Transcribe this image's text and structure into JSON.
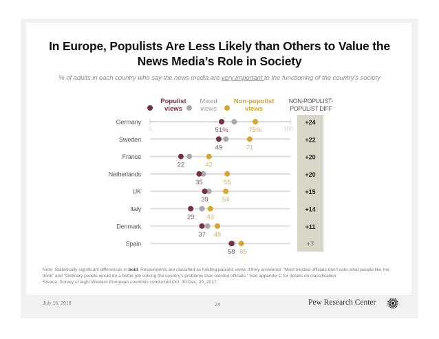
{
  "slide": {
    "title_line1": "In Europe, Populists Are Less Likely than Others to Value the",
    "title_line2": "News Media’s Role in Society",
    "subtitle_pre": "% of adults in each country who say the news media are ",
    "subtitle_underlined": "very important ",
    "subtitle_post": "to the functioning of the country’s society",
    "diff_header_line1": "NON-POPULIST-",
    "diff_header_line2": "POPULIST DIFF",
    "note_prefix": "Note: Statistically significant differences in ",
    "note_bold": "bold",
    "note_rest": ". Respondents are classified as holding populist views if they answered: “Most elected officials don’t care what people like me think” and “Ordinary people would do a better job solving the country’s problems than elected officials.” See appendix C for details on classification.",
    "source": "Source: Survey of eight Western European countries conducted Oct. 30-Dec. 20, 2017.",
    "date": "July 16, 2018",
    "page_number": "24",
    "brand": "Pew Research Center"
  },
  "colors": {
    "populist": "#7a2e45",
    "mixed": "#a9a9a9",
    "non_populist": "#d6a62c",
    "axis": "#dcdcdc",
    "diff_bg": "#d9d6c7"
  },
  "chart_data": {
    "type": "dot-plot",
    "title": "In Europe, Populists Are Less Likely than Others to Value the News Media’s Role in Society",
    "subtitle": "% of adults in each country who say the news media are very important to the functioning of the country’s society",
    "xlim": [
      0,
      100
    ],
    "axis_tick_labels": [
      "0",
      "100"
    ],
    "grid": false,
    "legend_position": "top",
    "categories": [
      "Germany",
      "Sweden",
      "France",
      "Netherlands",
      "UK",
      "Italy",
      "Denmark",
      "Spain"
    ],
    "series": [
      {
        "name": "Populist views",
        "key": "populist",
        "values": [
          51,
          49,
          22,
          35,
          39,
          29,
          37,
          58
        ]
      },
      {
        "name": "Mixed views",
        "key": "mixed",
        "values": [
          60,
          54,
          28,
          38,
          42,
          37,
          41,
          59
        ]
      },
      {
        "name": "Non-populist views",
        "key": "non_populist",
        "values": [
          75,
          71,
          42,
          55,
          54,
          43,
          48,
          65
        ]
      }
    ],
    "value_labels": {
      "populist": [
        "51%",
        "49",
        "22",
        "35",
        "39",
        "29",
        "37",
        "58"
      ],
      "non_populist": [
        "75%",
        "71",
        "42",
        "55",
        "54",
        "43",
        "48",
        "65"
      ]
    },
    "diff": {
      "header": "NON-POPULIST-POPULIST DIFF",
      "labels": [
        "+24",
        "+22",
        "+20",
        "+20",
        "+15",
        "+14",
        "+11",
        "+7"
      ],
      "significant": [
        true,
        true,
        true,
        true,
        true,
        true,
        true,
        false
      ]
    }
  },
  "legend": [
    {
      "line1": "Populist",
      "line2": "views",
      "key": "populist"
    },
    {
      "line1": "Mixed",
      "line2": "views",
      "key": "mixed"
    },
    {
      "line1": "Non-populist",
      "line2": "views",
      "key": "non_populist"
    }
  ]
}
